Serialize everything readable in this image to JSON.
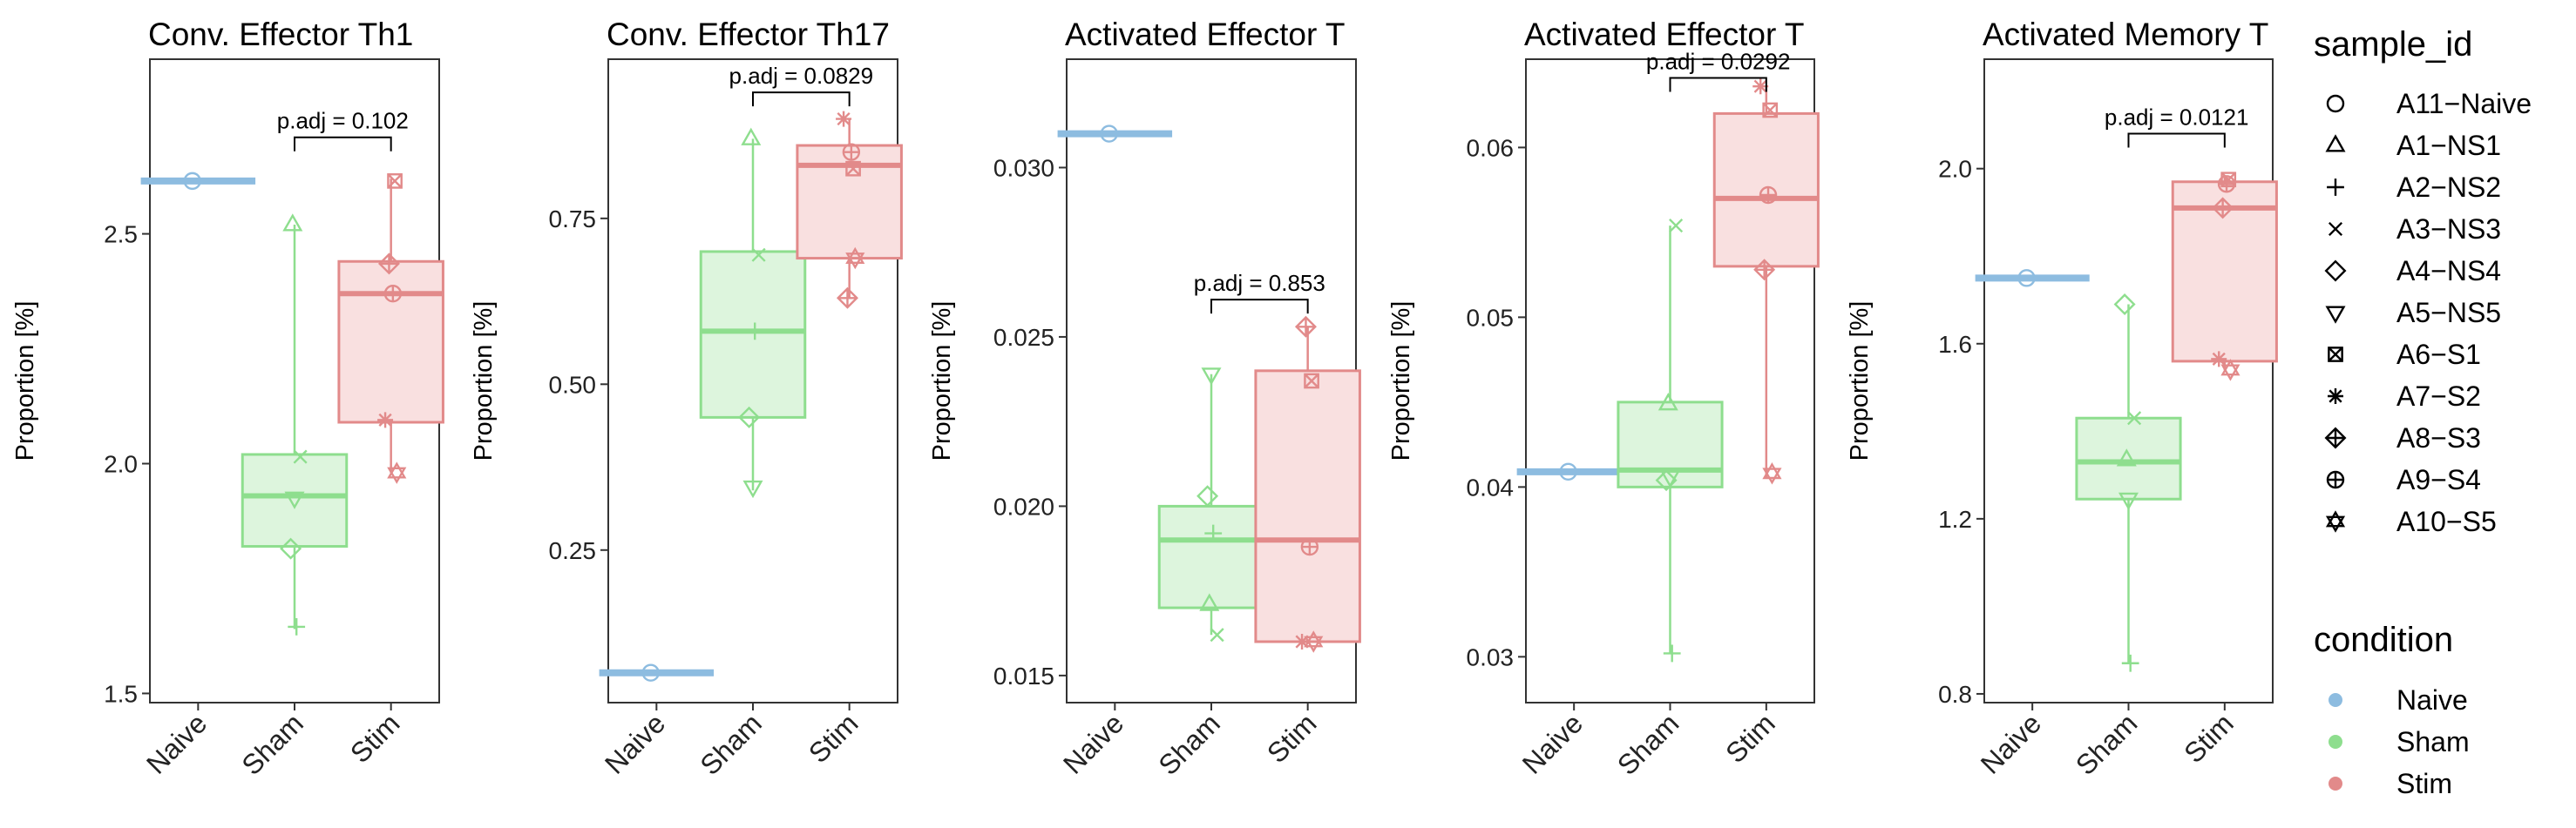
{
  "figure": {
    "legend": {
      "sample_title": "sample_id",
      "samples": [
        {
          "label": "A11−Naive",
          "shape": "circle"
        },
        {
          "label": "A1−NS1",
          "shape": "triangle"
        },
        {
          "label": "A2−NS2",
          "shape": "plus"
        },
        {
          "label": "A3−NS3",
          "shape": "cross"
        },
        {
          "label": "A4−NS4",
          "shape": "diamond"
        },
        {
          "label": "A5−NS5",
          "shape": "triangle-down"
        },
        {
          "label": "A6−S1",
          "shape": "square-x"
        },
        {
          "label": "A7−S2",
          "shape": "asterisk"
        },
        {
          "label": "A8−S3",
          "shape": "diamond-plus"
        },
        {
          "label": "A9−S4",
          "shape": "circle-plus"
        },
        {
          "label": "A10−S5",
          "shape": "star-of-david"
        }
      ],
      "condition_title": "condition",
      "conditions": [
        {
          "label": "Naive",
          "color": "#8DBCE0"
        },
        {
          "label": "Sham",
          "color": "#8EDE8E"
        },
        {
          "label": "Stim",
          "color": "#E28A8A"
        }
      ]
    }
  },
  "colors": {
    "Naive": {
      "stroke": "#8DBCE0",
      "fill": "#D6E8F5"
    },
    "Sham": {
      "stroke": "#8EDE8E",
      "fill": "#DDF5DD"
    },
    "Stim": {
      "stroke": "#E28A8A",
      "fill": "#F9E0E0"
    }
  },
  "chart_data": [
    {
      "type": "box",
      "title": "Conv. Effector Th1",
      "ylabel": "Proportion [%]",
      "categories": [
        "Naive",
        "Sham",
        "Stim"
      ],
      "ylim": [
        1.48,
        2.88
      ],
      "yticks": [
        1.5,
        2.0,
        2.5
      ],
      "ytick_labels": [
        "1.5",
        "2.0",
        "2.5"
      ],
      "boxes": [
        {
          "group": "Naive",
          "q1": 2.615,
          "median": 2.615,
          "q3": 2.615,
          "lo": 2.615,
          "hi": 2.615
        },
        {
          "group": "Sham",
          "q1": 1.82,
          "median": 1.93,
          "q3": 2.02,
          "lo": 1.64,
          "hi": 2.52
        },
        {
          "group": "Stim",
          "q1": 2.09,
          "median": 2.37,
          "q3": 2.44,
          "lo": 1.98,
          "hi": 2.62
        }
      ],
      "points": [
        {
          "group": "Naive",
          "sample": 0,
          "y": 2.615
        },
        {
          "group": "Sham",
          "sample": 1,
          "y": 2.52
        },
        {
          "group": "Sham",
          "sample": 2,
          "y": 1.645
        },
        {
          "group": "Sham",
          "sample": 3,
          "y": 2.015
        },
        {
          "group": "Sham",
          "sample": 4,
          "y": 1.815
        },
        {
          "group": "Sham",
          "sample": 5,
          "y": 1.925
        },
        {
          "group": "Stim",
          "sample": 6,
          "y": 2.615
        },
        {
          "group": "Stim",
          "sample": 7,
          "y": 2.095
        },
        {
          "group": "Stim",
          "sample": 8,
          "y": 2.435
        },
        {
          "group": "Stim",
          "sample": 9,
          "y": 2.37
        },
        {
          "group": "Stim",
          "sample": 10,
          "y": 1.98
        }
      ],
      "bracket": {
        "label": "p.adj = 0.102",
        "from": "Sham",
        "to": "Stim",
        "y": 2.71
      }
    },
    {
      "type": "box",
      "title": "Conv. Effector Th17",
      "ylabel": "Proportion [%]",
      "categories": [
        "Naive",
        "Sham",
        "Stim"
      ],
      "ylim": [
        0.02,
        0.99
      ],
      "yticks": [
        0.25,
        0.5,
        0.75
      ],
      "ytick_labels": [
        "0.25",
        "0.50",
        "0.75"
      ],
      "boxes": [
        {
          "group": "Naive",
          "q1": 0.065,
          "median": 0.065,
          "q3": 0.065,
          "lo": 0.065,
          "hi": 0.065
        },
        {
          "group": "Sham",
          "q1": 0.45,
          "median": 0.58,
          "q3": 0.7,
          "lo": 0.34,
          "hi": 0.87
        },
        {
          "group": "Stim",
          "q1": 0.69,
          "median": 0.83,
          "q3": 0.86,
          "lo": 0.63,
          "hi": 0.9
        }
      ],
      "points": [
        {
          "group": "Naive",
          "sample": 0,
          "y": 0.065
        },
        {
          "group": "Sham",
          "sample": 1,
          "y": 0.87
        },
        {
          "group": "Sham",
          "sample": 2,
          "y": 0.58
        },
        {
          "group": "Sham",
          "sample": 3,
          "y": 0.695
        },
        {
          "group": "Sham",
          "sample": 4,
          "y": 0.45
        },
        {
          "group": "Sham",
          "sample": 5,
          "y": 0.345
        },
        {
          "group": "Stim",
          "sample": 6,
          "y": 0.825
        },
        {
          "group": "Stim",
          "sample": 7,
          "y": 0.9
        },
        {
          "group": "Stim",
          "sample": 8,
          "y": 0.63
        },
        {
          "group": "Stim",
          "sample": 9,
          "y": 0.85
        },
        {
          "group": "Stim",
          "sample": 10,
          "y": 0.69
        }
      ],
      "bracket": {
        "label": "p.adj = 0.0829",
        "from": "Sham",
        "to": "Stim",
        "y": 0.94
      }
    },
    {
      "type": "box",
      "title": "Activated Effector T",
      "ylabel": "Proportion [%]",
      "categories": [
        "Naive",
        "Sham",
        "Stim"
      ],
      "ylim": [
        0.0142,
        0.0332
      ],
      "yticks": [
        0.015,
        0.02,
        0.025,
        0.03
      ],
      "ytick_labels": [
        "0.015",
        "0.020",
        "0.025",
        "0.030"
      ],
      "boxes": [
        {
          "group": "Naive",
          "q1": 0.031,
          "median": 0.031,
          "q3": 0.031,
          "lo": 0.031,
          "hi": 0.031
        },
        {
          "group": "Sham",
          "q1": 0.017,
          "median": 0.019,
          "q3": 0.02,
          "lo": 0.0162,
          "hi": 0.0239
        },
        {
          "group": "Stim",
          "q1": 0.016,
          "median": 0.019,
          "q3": 0.024,
          "lo": 0.016,
          "hi": 0.0253
        }
      ],
      "points": [
        {
          "group": "Naive",
          "sample": 0,
          "y": 0.031
        },
        {
          "group": "Sham",
          "sample": 1,
          "y": 0.0171
        },
        {
          "group": "Sham",
          "sample": 2,
          "y": 0.0192
        },
        {
          "group": "Sham",
          "sample": 3,
          "y": 0.0162
        },
        {
          "group": "Sham",
          "sample": 4,
          "y": 0.0203
        },
        {
          "group": "Sham",
          "sample": 5,
          "y": 0.0239
        },
        {
          "group": "Stim",
          "sample": 6,
          "y": 0.0237
        },
        {
          "group": "Stim",
          "sample": 7,
          "y": 0.016
        },
        {
          "group": "Stim",
          "sample": 8,
          "y": 0.0253
        },
        {
          "group": "Stim",
          "sample": 9,
          "y": 0.0188
        },
        {
          "group": "Stim",
          "sample": 10,
          "y": 0.016
        }
      ],
      "bracket": {
        "label": "p.adj = 0.853",
        "from": "Sham",
        "to": "Stim",
        "y": 0.0261
      }
    },
    {
      "type": "box",
      "title": "Activated Effector T",
      "ylabel": "Proportion [%]",
      "categories": [
        "Naive",
        "Sham",
        "Stim"
      ],
      "ylim": [
        0.0273,
        0.0652
      ],
      "yticks": [
        0.03,
        0.04,
        0.05,
        0.06
      ],
      "ytick_labels": [
        "0.03",
        "0.04",
        "0.05",
        "0.06"
      ],
      "boxes": [
        {
          "group": "Naive",
          "q1": 0.0409,
          "median": 0.0409,
          "q3": 0.0409,
          "lo": 0.0409,
          "hi": 0.0409
        },
        {
          "group": "Sham",
          "q1": 0.04,
          "median": 0.041,
          "q3": 0.045,
          "lo": 0.0302,
          "hi": 0.0554
        },
        {
          "group": "Stim",
          "q1": 0.053,
          "median": 0.057,
          "q3": 0.062,
          "lo": 0.0405,
          "hi": 0.0635
        }
      ],
      "points": [
        {
          "group": "Naive",
          "sample": 0,
          "y": 0.0409
        },
        {
          "group": "Sham",
          "sample": 1,
          "y": 0.0449
        },
        {
          "group": "Sham",
          "sample": 2,
          "y": 0.0302
        },
        {
          "group": "Sham",
          "sample": 3,
          "y": 0.0554
        },
        {
          "group": "Sham",
          "sample": 4,
          "y": 0.0404
        },
        {
          "group": "Sham",
          "sample": 5,
          "y": 0.0406
        },
        {
          "group": "Stim",
          "sample": 6,
          "y": 0.0622
        },
        {
          "group": "Stim",
          "sample": 7,
          "y": 0.0636
        },
        {
          "group": "Stim",
          "sample": 8,
          "y": 0.0528
        },
        {
          "group": "Stim",
          "sample": 9,
          "y": 0.0572
        },
        {
          "group": "Stim",
          "sample": 10,
          "y": 0.0408
        }
      ],
      "bracket": {
        "label": "p.adj = 0.0292",
        "from": "Sham",
        "to": "Stim",
        "y": 0.0641
      }
    },
    {
      "type": "box",
      "title": "Activated Memory T",
      "ylabel": "Proportion [%]",
      "categories": [
        "Naive",
        "Sham",
        "Stim"
      ],
      "ylim": [
        0.78,
        2.25
      ],
      "yticks": [
        0.8,
        1.2,
        1.6,
        2.0
      ],
      "ytick_labels": [
        "0.8",
        "1.2",
        "1.6",
        "2.0"
      ],
      "boxes": [
        {
          "group": "Naive",
          "q1": 1.75,
          "median": 1.75,
          "q3": 1.75,
          "lo": 1.75,
          "hi": 1.75
        },
        {
          "group": "Sham",
          "q1": 1.245,
          "median": 1.33,
          "q3": 1.43,
          "lo": 0.87,
          "hi": 1.69
        },
        {
          "group": "Stim",
          "q1": 1.56,
          "median": 1.91,
          "q3": 1.97,
          "lo": 1.54,
          "hi": 1.98
        }
      ],
      "points": [
        {
          "group": "Naive",
          "sample": 0,
          "y": 1.75
        },
        {
          "group": "Sham",
          "sample": 1,
          "y": 1.335
        },
        {
          "group": "Sham",
          "sample": 2,
          "y": 0.87
        },
        {
          "group": "Sham",
          "sample": 3,
          "y": 1.43
        },
        {
          "group": "Sham",
          "sample": 4,
          "y": 1.69
        },
        {
          "group": "Sham",
          "sample": 5,
          "y": 1.245
        },
        {
          "group": "Stim",
          "sample": 6,
          "y": 1.975
        },
        {
          "group": "Stim",
          "sample": 7,
          "y": 1.565
        },
        {
          "group": "Stim",
          "sample": 8,
          "y": 1.91
        },
        {
          "group": "Stim",
          "sample": 9,
          "y": 1.965
        },
        {
          "group": "Stim",
          "sample": 10,
          "y": 1.54
        }
      ],
      "bracket": {
        "label": "p.adj = 0.0121",
        "from": "Sham",
        "to": "Stim",
        "y": 2.08
      }
    }
  ]
}
